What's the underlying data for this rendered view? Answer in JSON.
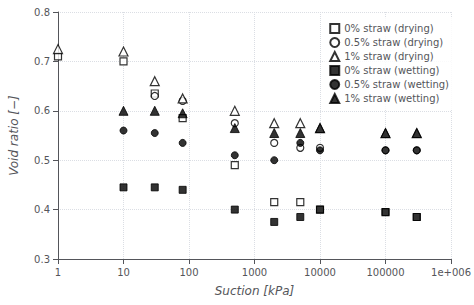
{
  "chart_data": {
    "type": "scatter",
    "xlabel": "Suction [kPa]",
    "ylabel": "Void ratio [−]",
    "log": "x",
    "xlim": [
      1,
      1000000
    ],
    "ylim": [
      0.3,
      0.8
    ],
    "xticks": [
      1,
      10,
      100,
      1000,
      10000,
      100000,
      {
        "value": 1000000,
        "label": "1e+006"
      }
    ],
    "yticks": [
      0.3,
      0.4,
      0.5,
      0.6,
      0.7,
      0.8
    ],
    "grid": true,
    "legend": "upper right",
    "series": [
      {
        "name": "0% straw (drying)",
        "color": "black",
        "marker": "square-open",
        "x": [
          1,
          10,
          30,
          80,
          500,
          2000,
          5000,
          10000,
          100000,
          300000
        ],
        "values": [
          0.71,
          0.7,
          0.635,
          0.585,
          0.49,
          0.415,
          0.415,
          0.4,
          0.395,
          0.385
        ]
      },
      {
        "name": "0.5% straw (drying)",
        "color": "black",
        "marker": "circle-open",
        "x": [
          30,
          80,
          500,
          2000,
          5000,
          10000,
          100000,
          300000
        ],
        "values": [
          0.63,
          0.62,
          0.575,
          0.535,
          0.525,
          0.525,
          0.52,
          0.52
        ]
      },
      {
        "name": "1% straw (drying)",
        "color": "black",
        "marker": "triangle-open",
        "x": [
          1,
          10,
          30,
          80,
          500,
          2000,
          5000,
          10000,
          100000,
          300000
        ],
        "values": [
          0.725,
          0.72,
          0.66,
          0.625,
          0.6,
          0.575,
          0.575,
          0.565,
          0.555,
          0.555
        ]
      },
      {
        "name": "0% straw (wetting)",
        "color": "black",
        "marker": "square",
        "x": [
          10,
          30,
          80,
          500,
          2000,
          5000,
          10000,
          100000,
          300000
        ],
        "values": [
          0.445,
          0.445,
          0.44,
          0.4,
          0.375,
          0.385,
          0.4,
          0.395,
          0.385
        ]
      },
      {
        "name": "0.5% straw (wetting)",
        "color": "black",
        "marker": "circle",
        "x": [
          10,
          30,
          80,
          500,
          2000,
          5000,
          10000,
          100000,
          300000
        ],
        "values": [
          0.56,
          0.555,
          0.535,
          0.51,
          0.5,
          0.535,
          0.52,
          0.52,
          0.52
        ]
      },
      {
        "name": "1% straw (wetting)",
        "color": "black",
        "marker": "triangle",
        "x": [
          10,
          30,
          80,
          500,
          2000,
          5000,
          10000,
          100000,
          300000
        ],
        "values": [
          0.6,
          0.6,
          0.595,
          0.565,
          0.555,
          0.555,
          0.565,
          0.555,
          0.555
        ]
      }
    ]
  }
}
